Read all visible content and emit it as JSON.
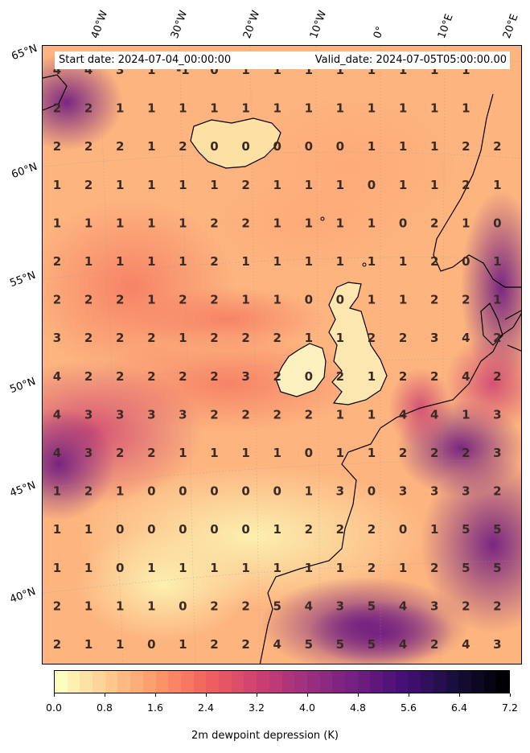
{
  "header": {
    "start_date": "Start date: 2024-07-04_00:00:00",
    "valid_date": "Valid_date: 2024-07-05T05:00:00.00"
  },
  "lon_labels": [
    "40°W",
    "30°W",
    "20°W",
    "10°W",
    "0°",
    "10°E",
    "20°E"
  ],
  "lat_labels": [
    "65°N",
    "60°N",
    "55°N",
    "50°N",
    "45°N",
    "40°N"
  ],
  "colorbar": {
    "label": "2m dewpoint depression (K)",
    "ticks": [
      "0.0",
      "0.8",
      "1.6",
      "2.4",
      "3.2",
      "4.0",
      "4.8",
      "5.6",
      "6.4",
      "7.2"
    ],
    "min": 0.0,
    "max": 7.2,
    "levels": 36,
    "colormap": "magma_r",
    "colors": [
      "#fcfdbf",
      "#fec98d",
      "#fd9668",
      "#f1605d",
      "#cd4071",
      "#9e2f7f",
      "#721f81",
      "#440f76",
      "#180f3d",
      "#000004"
    ]
  },
  "grid_values": [
    [
      "4",
      "4",
      "3",
      "1",
      "-1",
      "0",
      "1",
      "1",
      "1",
      "1",
      "1",
      "1",
      "1",
      "1",
      ""
    ],
    [
      "2",
      "2",
      "1",
      "1",
      "1",
      "1",
      "1",
      "1",
      "1",
      "1",
      "1",
      "1",
      "1",
      "1",
      ""
    ],
    [
      "2",
      "2",
      "2",
      "1",
      "2",
      "0",
      "0",
      "0",
      "0",
      "0",
      "1",
      "1",
      "1",
      "2",
      "2"
    ],
    [
      "1",
      "2",
      "1",
      "1",
      "1",
      "1",
      "2",
      "1",
      "1",
      "1",
      "0",
      "1",
      "1",
      "2",
      "1"
    ],
    [
      "1",
      "1",
      "1",
      "1",
      "1",
      "2",
      "2",
      "1",
      "1",
      "1",
      "1",
      "0",
      "2",
      "1",
      "0"
    ],
    [
      "2",
      "1",
      "1",
      "1",
      "1",
      "2",
      "1",
      "1",
      "1",
      "1",
      "1",
      "1",
      "2",
      "0",
      "1"
    ],
    [
      "2",
      "2",
      "2",
      "1",
      "2",
      "2",
      "1",
      "1",
      "0",
      "0",
      "1",
      "1",
      "2",
      "2",
      "1"
    ],
    [
      "3",
      "2",
      "2",
      "2",
      "1",
      "2",
      "2",
      "2",
      "1",
      "1",
      "2",
      "2",
      "3",
      "4",
      "2"
    ],
    [
      "4",
      "2",
      "2",
      "2",
      "2",
      "2",
      "3",
      "2",
      "0",
      "2",
      "1",
      "2",
      "2",
      "4",
      "2"
    ],
    [
      "4",
      "3",
      "3",
      "3",
      "3",
      "2",
      "2",
      "2",
      "2",
      "1",
      "1",
      "4",
      "4",
      "1",
      "3"
    ],
    [
      "4",
      "3",
      "2",
      "2",
      "1",
      "1",
      "1",
      "1",
      "0",
      "1",
      "1",
      "2",
      "2",
      "2",
      "3"
    ],
    [
      "1",
      "2",
      "1",
      "0",
      "0",
      "0",
      "0",
      "0",
      "1",
      "3",
      "0",
      "3",
      "3",
      "3",
      "2"
    ],
    [
      "1",
      "1",
      "0",
      "0",
      "0",
      "0",
      "0",
      "1",
      "2",
      "2",
      "2",
      "0",
      "1",
      "5",
      "5"
    ],
    [
      "1",
      "1",
      "0",
      "1",
      "1",
      "1",
      "1",
      "1",
      "1",
      "1",
      "2",
      "1",
      "2",
      "5",
      "5"
    ],
    [
      "2",
      "1",
      "1",
      "1",
      "0",
      "2",
      "2",
      "5",
      "4",
      "3",
      "5",
      "4",
      "3",
      "2",
      "2"
    ],
    [
      "2",
      "1",
      "1",
      "0",
      "1",
      "2",
      "2",
      "4",
      "5",
      "5",
      "5",
      "4",
      "2",
      "4",
      "3"
    ]
  ]
}
